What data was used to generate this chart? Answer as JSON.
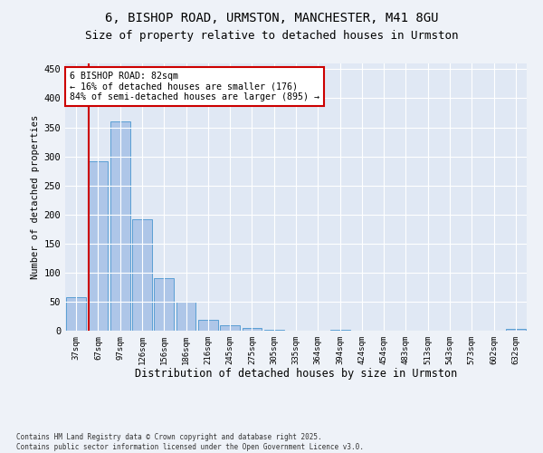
{
  "title1": "6, BISHOP ROAD, URMSTON, MANCHESTER, M41 8GU",
  "title2": "Size of property relative to detached houses in Urmston",
  "xlabel": "Distribution of detached houses by size in Urmston",
  "ylabel": "Number of detached properties",
  "categories": [
    "37sqm",
    "67sqm",
    "97sqm",
    "126sqm",
    "156sqm",
    "186sqm",
    "216sqm",
    "245sqm",
    "275sqm",
    "305sqm",
    "335sqm",
    "364sqm",
    "394sqm",
    "424sqm",
    "454sqm",
    "483sqm",
    "513sqm",
    "543sqm",
    "573sqm",
    "602sqm",
    "632sqm"
  ],
  "values": [
    57,
    291,
    360,
    192,
    90,
    50,
    18,
    9,
    4,
    2,
    0,
    0,
    2,
    0,
    0,
    0,
    0,
    0,
    0,
    0,
    3
  ],
  "bar_color": "#aec6e8",
  "bar_edge_color": "#5a9fd4",
  "vline_color": "#cc0000",
  "annotation_text": "6 BISHOP ROAD: 82sqm\n← 16% of detached houses are smaller (176)\n84% of semi-detached houses are larger (895) →",
  "annotation_box_color": "#ffffff",
  "annotation_box_edge": "#cc0000",
  "ylim": [
    0,
    460
  ],
  "yticks": [
    0,
    50,
    100,
    150,
    200,
    250,
    300,
    350,
    400,
    450
  ],
  "bg_color": "#eef2f8",
  "plot_bg_color": "#e0e8f4",
  "footer": "Contains HM Land Registry data © Crown copyright and database right 2025.\nContains public sector information licensed under the Open Government Licence v3.0.",
  "title_fontsize": 10,
  "subtitle_fontsize": 9,
  "vline_bar_index": 1
}
